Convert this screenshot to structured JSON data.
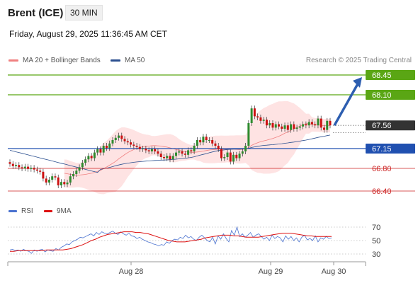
{
  "header": {
    "symbol": "Brent (ICE)",
    "interval": "30 MIN",
    "datetime": "Friday, August 29, 2025 11:36:45 AM CET",
    "copyright": "Research © 2025 Trading Central"
  },
  "legend": {
    "ma20": "MA 20 + Bollinger Bands",
    "ma50": "MA 50",
    "rsi": "RSI",
    "ma9": "9MA"
  },
  "colors": {
    "green_level": "#5aa614",
    "blue_level": "#2050b0",
    "red_level": "#cc2222",
    "current_label": "#333333",
    "bollinger_fill": "#fdd9d9",
    "ma20": "#f08080",
    "ma50": "#2b4f8f",
    "candle_up": "#2e8b2e",
    "candle_down": "#cc1111",
    "rsi": "#4a72d0",
    "ma9": "#dd1111",
    "arrow": "#2d5eb0"
  },
  "chart_data": {
    "type": "candlestick",
    "x_labels": [
      "Aug 28",
      "Aug 29",
      "Aug 30"
    ],
    "levels": [
      {
        "value": 68.45,
        "label": "68.45",
        "kind": "resistance"
      },
      {
        "value": 68.1,
        "label": "68.10",
        "kind": "resistance"
      },
      {
        "value": 67.56,
        "label": "67.56",
        "kind": "current"
      },
      {
        "value": 67.15,
        "label": "67.15",
        "kind": "pivot"
      },
      {
        "value": 66.8,
        "label": "66.80",
        "kind": "support"
      },
      {
        "value": 66.4,
        "label": "66.40",
        "kind": "support"
      }
    ],
    "ylim": [
      66.3,
      68.55
    ],
    "close": [
      66.88,
      66.84,
      66.86,
      66.82,
      66.8,
      66.83,
      66.79,
      66.81,
      66.78,
      66.76,
      66.74,
      66.62,
      66.55,
      66.6,
      66.66,
      66.64,
      66.5,
      66.56,
      66.52,
      66.55,
      66.66,
      66.7,
      66.76,
      66.82,
      66.9,
      66.96,
      67.02,
      66.98,
      67.08,
      67.14,
      67.08,
      67.2,
      67.16,
      67.24,
      67.3,
      67.34,
      67.38,
      67.32,
      67.28,
      67.26,
      67.22,
      67.2,
      67.18,
      67.14,
      67.15,
      67.12,
      67.1,
      67.14,
      67.1,
      67.06,
      67.0,
      66.98,
      67.02,
      66.96,
      67.02,
      67.08,
      67.1,
      67.06,
      67.04,
      67.12,
      67.1,
      67.2,
      67.3,
      67.26,
      67.36,
      67.3,
      67.3,
      67.24,
      67.2,
      67.14,
      66.98,
      67.0,
      67.08,
      66.92,
      67.04,
      66.98,
      67.06,
      67.1,
      67.2,
      67.6,
      67.86,
      67.72,
      67.7,
      67.64,
      67.66,
      67.56,
      67.6,
      67.52,
      67.58,
      67.54,
      67.5,
      67.56,
      67.48,
      67.58,
      67.5,
      67.52,
      67.54,
      67.58,
      67.56,
      67.62,
      67.58,
      67.56,
      67.68,
      67.52,
      67.48,
      67.64,
      67.56
    ],
    "rsi": [
      36,
      37,
      35,
      36,
      34,
      37,
      35,
      34,
      31,
      36,
      34,
      36,
      37,
      33,
      36,
      35,
      34,
      38,
      36,
      40,
      42,
      45,
      44,
      48,
      50,
      52,
      55,
      54,
      56,
      58,
      60,
      57,
      62,
      59,
      63,
      61,
      60,
      62,
      64,
      61,
      59,
      63,
      60,
      58,
      61,
      57,
      56,
      53,
      55,
      52,
      50,
      48,
      47,
      45,
      44,
      42,
      44,
      43,
      48,
      46,
      50,
      52,
      51,
      55,
      53,
      58,
      54,
      56,
      52,
      50,
      55,
      58,
      54,
      50,
      48,
      55,
      45,
      57,
      52,
      60,
      53,
      48,
      65,
      58,
      70,
      56,
      60,
      55,
      58,
      62,
      55,
      58,
      60,
      56,
      52,
      55,
      50,
      58,
      53,
      56,
      54,
      48,
      57,
      52,
      56,
      50,
      54,
      48,
      55,
      58,
      51,
      53,
      50,
      57,
      48,
      54,
      52,
      56,
      53,
      54
    ],
    "ma9": [
      34,
      34,
      35,
      35,
      35,
      35,
      35,
      35,
      35,
      36,
      36,
      36,
      36,
      36,
      37,
      38,
      40,
      42,
      44,
      47,
      50,
      52,
      55,
      57,
      59,
      60,
      61,
      62,
      63,
      63,
      63,
      62,
      62,
      61,
      60,
      58,
      56,
      54,
      52,
      50,
      49,
      48,
      48,
      48,
      49,
      50,
      51,
      52,
      54,
      55,
      56,
      57,
      58,
      58,
      58,
      57,
      57,
      56,
      55,
      55,
      55,
      55,
      56,
      57,
      58,
      59,
      60,
      61,
      61,
      61,
      60,
      59,
      58,
      57,
      57,
      56,
      56,
      56,
      56,
      56
    ],
    "rsi_levels": [
      70,
      50,
      30
    ]
  }
}
